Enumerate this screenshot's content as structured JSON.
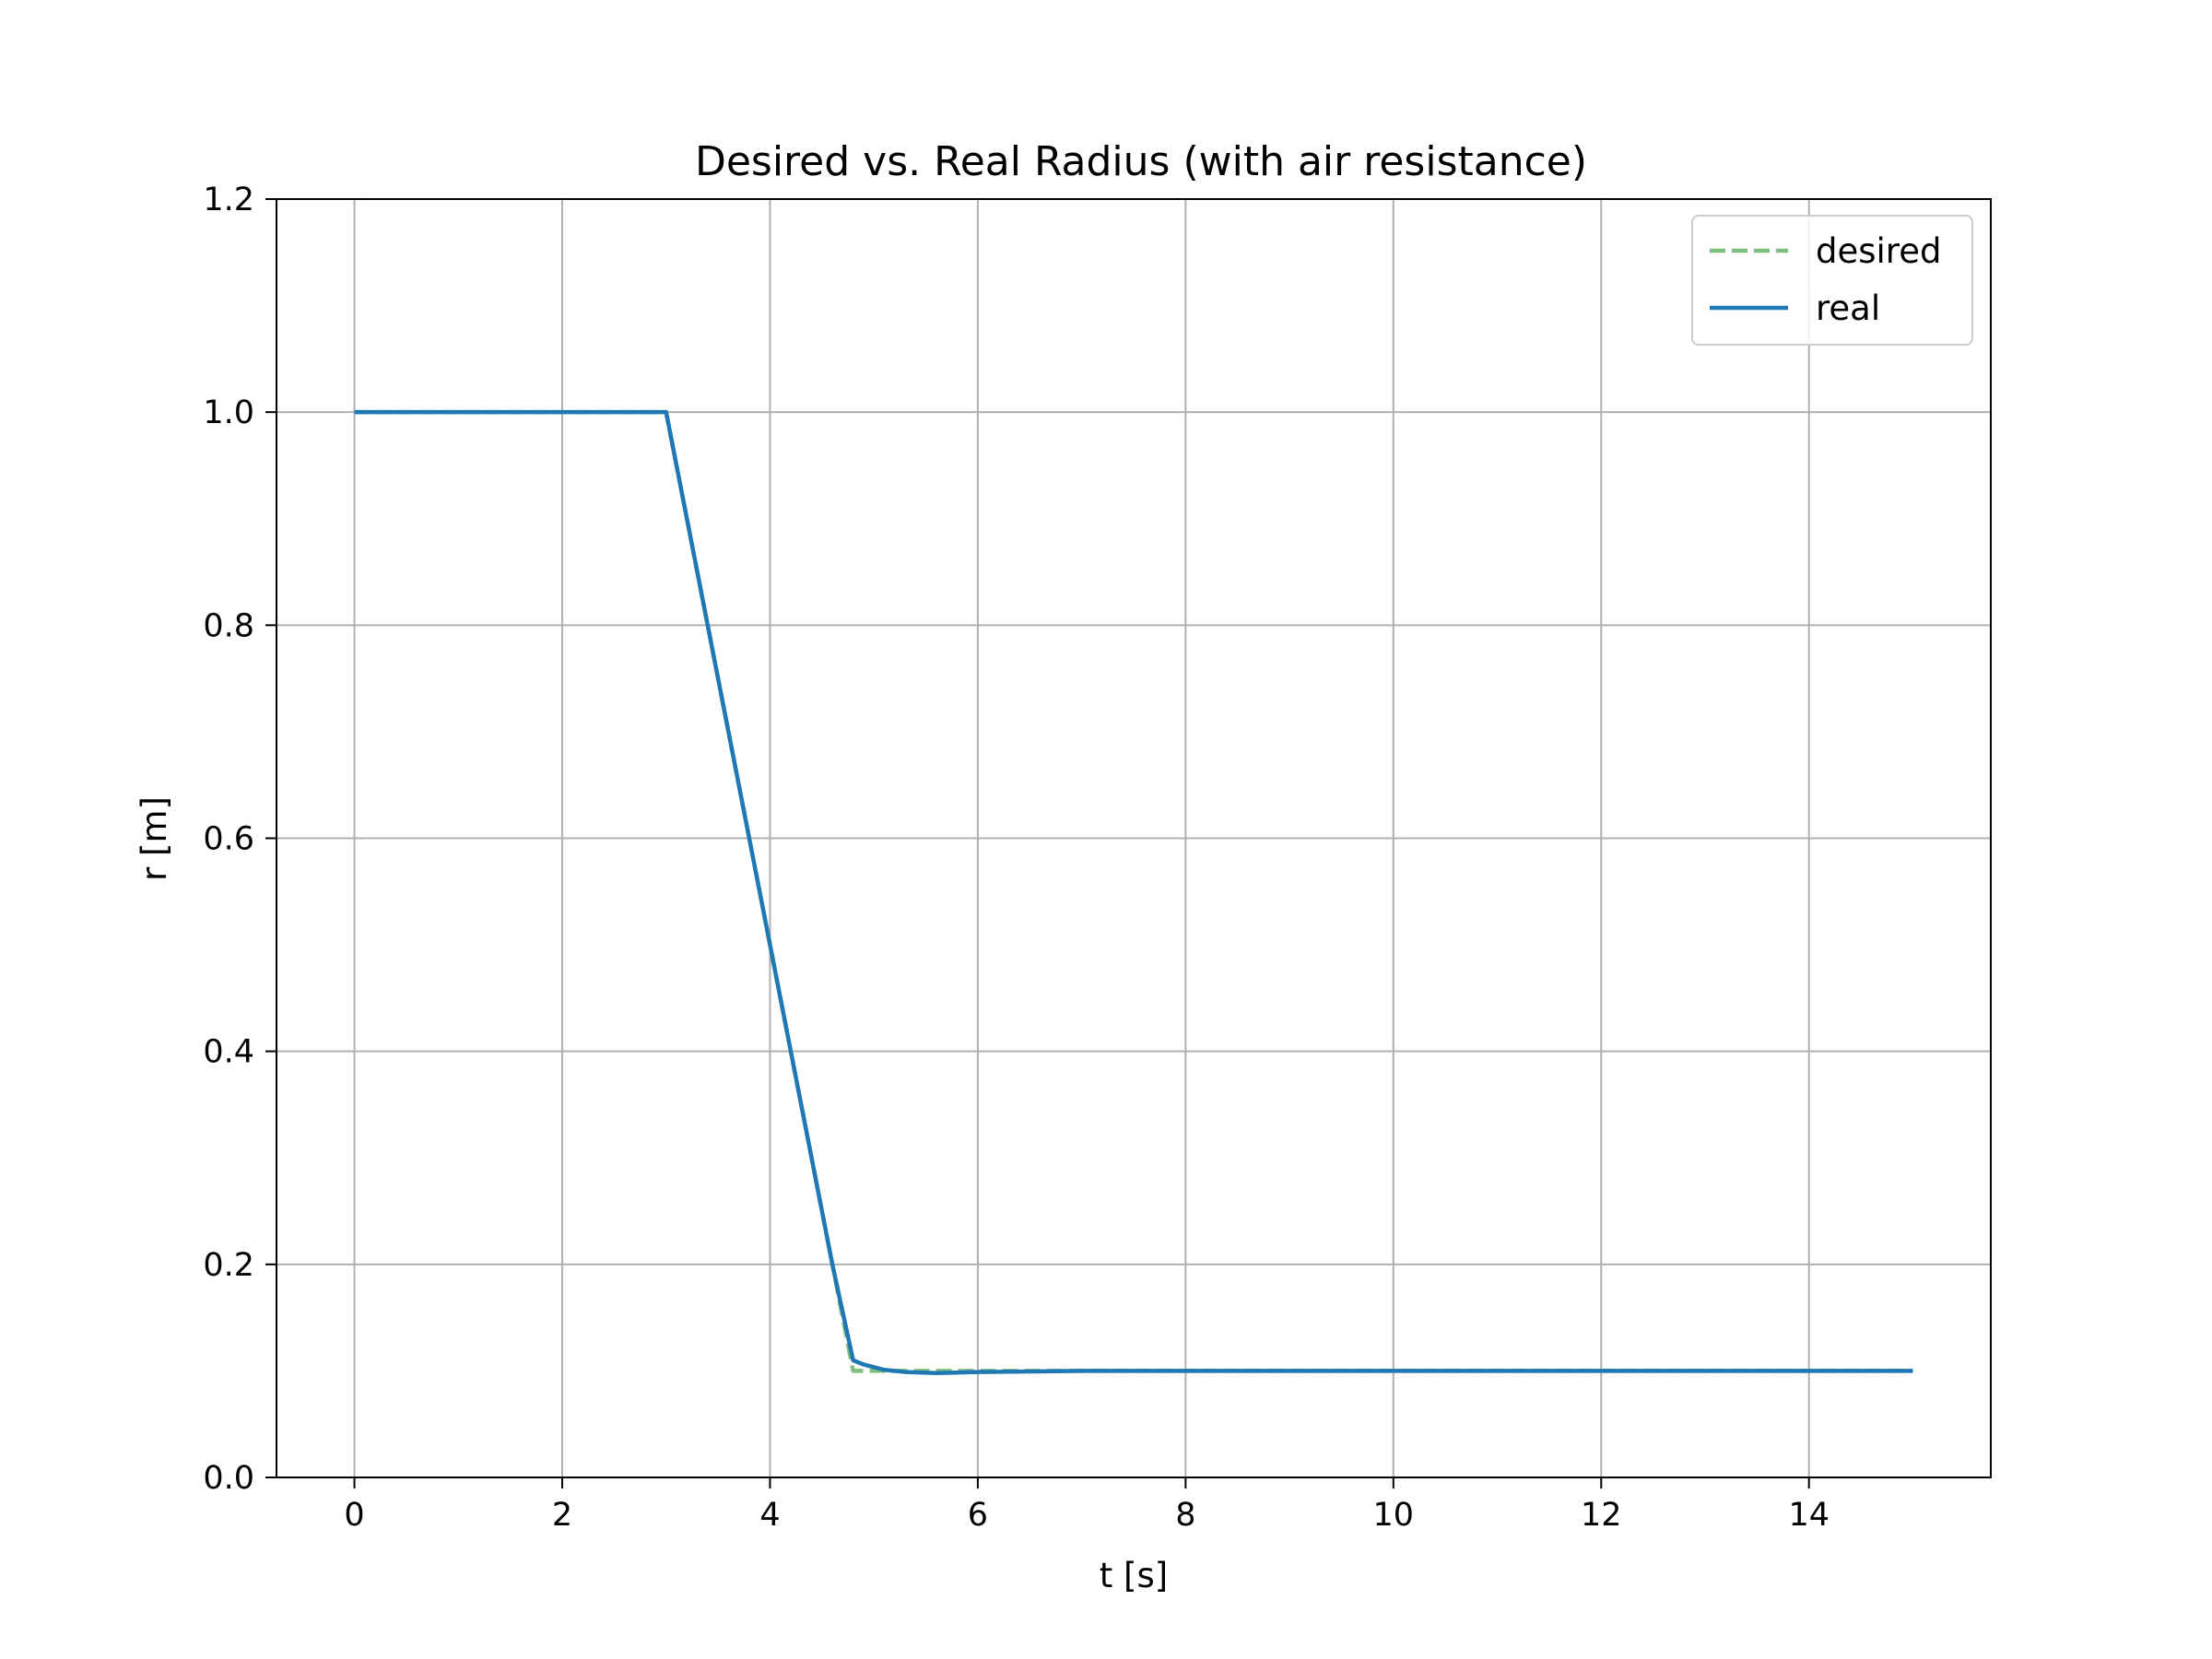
{
  "chart_data": {
    "type": "line",
    "title": "Desired vs. Real Radius (with air resistance)",
    "xlabel": "t [s]",
    "ylabel": "r [m]",
    "xlim": [
      -0.75,
      15.75
    ],
    "ylim": [
      0.0,
      1.2
    ],
    "xticks": [
      0,
      2,
      4,
      6,
      8,
      10,
      12,
      14
    ],
    "yticks": [
      0.0,
      0.2,
      0.4,
      0.6,
      0.8,
      1.0,
      1.2
    ],
    "grid": true,
    "legend_position": "top-right",
    "series": [
      {
        "name": "desired",
        "color": "#81c07e",
        "style": "dashed",
        "x": [
          0,
          3,
          4.8,
          15
        ],
        "y": [
          1.0,
          1.0,
          0.1,
          0.1
        ]
      },
      {
        "name": "real",
        "color": "#1f77b4",
        "style": "solid",
        "x": [
          0,
          3,
          4,
          4.6,
          4.8,
          4.9,
          5.1,
          5.3,
          5.6,
          6.0,
          7.0,
          15
        ],
        "y": [
          1.0,
          1.0,
          0.5,
          0.2,
          0.11,
          0.106,
          0.101,
          0.099,
          0.098,
          0.099,
          0.1,
          0.1
        ]
      }
    ]
  }
}
